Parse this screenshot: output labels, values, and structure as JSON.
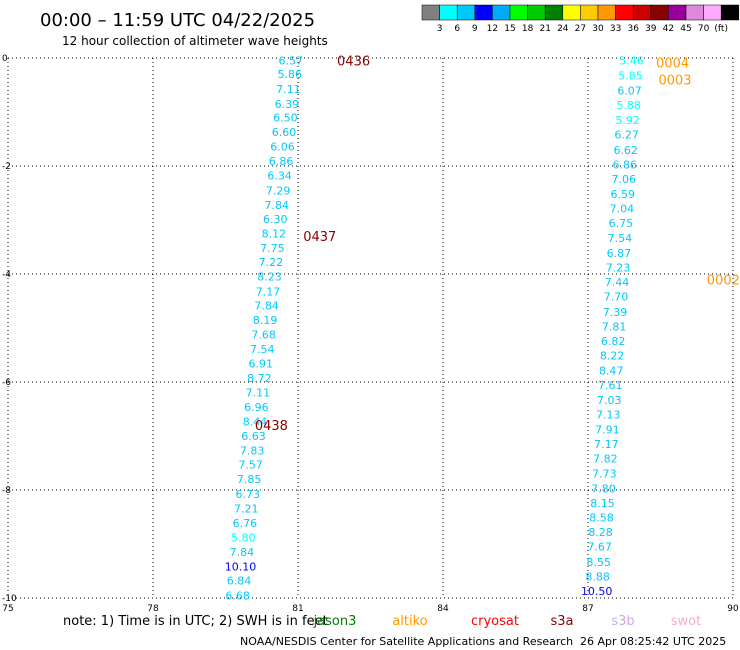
{
  "header": {
    "title": "00:00 – 11:59 UTC 04/22/2025",
    "subtitle": "12 hour collection of altimeter wave heights"
  },
  "colorbar": {
    "colors": [
      "#808080",
      "#00ffff",
      "#00c8ff",
      "#0000ff",
      "#00aaff",
      "#00ff00",
      "#00cc00",
      "#008000",
      "#ffff00",
      "#ffcc00",
      "#ff9900",
      "#ff0000",
      "#cc0000",
      "#8b0000",
      "#990099",
      "#dd88dd",
      "#ffaaff",
      "#000000"
    ],
    "ticks": [
      "3",
      "6",
      "9",
      "12",
      "15",
      "18",
      "21",
      "24",
      "27",
      "30",
      "33",
      "36",
      "39",
      "42",
      "45",
      "70",
      "(ft)"
    ]
  },
  "note": "note:  1) Time is in UTC;  2) SWH is in feet",
  "satellites": [
    {
      "name": "jason3",
      "color": "#008000"
    },
    {
      "name": "altiko",
      "color": "#ff9900"
    },
    {
      "name": "cryosat",
      "color": "#ff0000"
    },
    {
      "name": "s3a",
      "color": "#8b0000"
    },
    {
      "name": "s3b",
      "color": "#ccaaee"
    },
    {
      "name": "swot",
      "color": "#ffaacc"
    }
  ],
  "footer": {
    "credit": "NOAA/NESDIS Center for Satellite Applications and Research",
    "timestamp": "26 Apr 08:25:42 UTC 2025"
  },
  "chart_data": {
    "type": "scatter",
    "xlim": [
      75,
      90
    ],
    "ylim": [
      -10,
      0
    ],
    "xticks": [
      "75",
      "78",
      "81",
      "84",
      "87",
      "90"
    ],
    "yticks": [
      "0",
      "-2",
      "-4",
      "-6",
      "-8",
      "-10"
    ],
    "grid": true,
    "series": [
      {
        "satellite": "s3a",
        "points": [
          {
            "x": 80.85,
            "y": -0.05,
            "label": "6.57",
            "color": "#00c8ff"
          },
          {
            "x": 80.83,
            "y": -0.3,
            "label": "5.86",
            "color": "#00c8ff"
          },
          {
            "x": 80.8,
            "y": -0.57,
            "label": "7.11",
            "color": "#00c8ff"
          },
          {
            "x": 80.77,
            "y": -0.85,
            "label": "6.39",
            "color": "#00c8ff"
          },
          {
            "x": 80.74,
            "y": -1.1,
            "label": "6.50",
            "color": "#00c8ff"
          },
          {
            "x": 80.71,
            "y": -1.37,
            "label": "6.60",
            "color": "#00c8ff"
          },
          {
            "x": 80.68,
            "y": -1.64,
            "label": "6.06",
            "color": "#00c8ff"
          },
          {
            "x": 80.65,
            "y": -1.91,
            "label": "6.86",
            "color": "#00c8ff"
          },
          {
            "x": 80.62,
            "y": -2.18,
            "label": "6.34",
            "color": "#00c8ff"
          },
          {
            "x": 80.59,
            "y": -2.45,
            "label": "7.29",
            "color": "#00c8ff"
          },
          {
            "x": 80.56,
            "y": -2.72,
            "label": "7.84",
            "color": "#00c8ff"
          },
          {
            "x": 80.53,
            "y": -2.98,
            "label": "6.30",
            "color": "#00c8ff"
          },
          {
            "x": 80.5,
            "y": -3.25,
            "label": "8.12",
            "color": "#00c8ff"
          },
          {
            "x": 80.47,
            "y": -3.52,
            "label": "7.75",
            "color": "#00c8ff"
          },
          {
            "x": 80.44,
            "y": -3.78,
            "label": "7.22",
            "color": "#00c8ff"
          },
          {
            "x": 80.41,
            "y": -4.05,
            "label": "8.23",
            "color": "#00c8ff"
          },
          {
            "x": 80.38,
            "y": -4.32,
            "label": "7.17",
            "color": "#00c8ff"
          },
          {
            "x": 80.35,
            "y": -4.58,
            "label": "7.84",
            "color": "#00c8ff"
          },
          {
            "x": 80.32,
            "y": -4.85,
            "label": "8.19",
            "color": "#00c8ff"
          },
          {
            "x": 80.29,
            "y": -5.12,
            "label": "7.68",
            "color": "#00c8ff"
          },
          {
            "x": 80.26,
            "y": -5.39,
            "label": "7.54",
            "color": "#00c8ff"
          },
          {
            "x": 80.23,
            "y": -5.66,
            "label": "6.91",
            "color": "#00c8ff"
          },
          {
            "x": 80.2,
            "y": -5.93,
            "label": "8.72",
            "color": "#00c8ff"
          },
          {
            "x": 80.17,
            "y": -6.19,
            "label": "7.11",
            "color": "#00c8ff"
          },
          {
            "x": 80.14,
            "y": -6.46,
            "label": "6.96",
            "color": "#00c8ff"
          },
          {
            "x": 80.11,
            "y": -6.73,
            "label": "8.44",
            "color": "#00c8ff"
          },
          {
            "x": 80.08,
            "y": -7.0,
            "label": "6.63",
            "color": "#00c8ff"
          },
          {
            "x": 80.05,
            "y": -7.27,
            "label": "7.83",
            "color": "#00c8ff"
          },
          {
            "x": 80.02,
            "y": -7.53,
            "label": "7.57",
            "color": "#00c8ff"
          },
          {
            "x": 79.99,
            "y": -7.8,
            "label": "7.85",
            "color": "#00c8ff"
          },
          {
            "x": 79.96,
            "y": -8.07,
            "label": "6.73",
            "color": "#00c8ff"
          },
          {
            "x": 79.93,
            "y": -8.34,
            "label": "7.21",
            "color": "#00c8ff"
          },
          {
            "x": 79.9,
            "y": -8.61,
            "label": "6.76",
            "color": "#00c8ff"
          },
          {
            "x": 79.87,
            "y": -8.88,
            "label": "5.80",
            "color": "#00ffff"
          },
          {
            "x": 79.84,
            "y": -9.15,
            "label": "7.84",
            "color": "#00c8ff"
          },
          {
            "x": 79.81,
            "y": -9.42,
            "label": "10.10",
            "color": "#0000ff"
          },
          {
            "x": 79.78,
            "y": -9.68,
            "label": "6.84",
            "color": "#00c8ff"
          },
          {
            "x": 79.75,
            "y": -9.95,
            "label": "6.68",
            "color": "#00c8ff"
          }
        ]
      },
      {
        "satellite": "altiko",
        "points": [
          {
            "x": 87.9,
            "y": -0.05,
            "label": "5.46",
            "color": "#00ffff"
          },
          {
            "x": 87.88,
            "y": -0.32,
            "label": "5.85",
            "color": "#00ffff"
          },
          {
            "x": 87.86,
            "y": -0.6,
            "label": "6.07",
            "color": "#00c8ff"
          },
          {
            "x": 87.84,
            "y": -0.87,
            "label": "5.88",
            "color": "#00ffff"
          },
          {
            "x": 87.82,
            "y": -1.15,
            "label": "5.92",
            "color": "#00ffff"
          },
          {
            "x": 87.8,
            "y": -1.42,
            "label": "6.27",
            "color": "#00c8ff"
          },
          {
            "x": 87.78,
            "y": -1.7,
            "label": "6.62",
            "color": "#00c8ff"
          },
          {
            "x": 87.76,
            "y": -1.97,
            "label": "6.86",
            "color": "#00c8ff"
          },
          {
            "x": 87.74,
            "y": -2.24,
            "label": "7.06",
            "color": "#00c8ff"
          },
          {
            "x": 87.72,
            "y": -2.52,
            "label": "6.59",
            "color": "#00c8ff"
          },
          {
            "x": 87.7,
            "y": -2.79,
            "label": "7.04",
            "color": "#00c8ff"
          },
          {
            "x": 87.68,
            "y": -3.06,
            "label": "6.75",
            "color": "#00c8ff"
          },
          {
            "x": 87.66,
            "y": -3.33,
            "label": "7.54",
            "color": "#00c8ff"
          },
          {
            "x": 87.64,
            "y": -3.61,
            "label": "6.87",
            "color": "#00c8ff"
          },
          {
            "x": 87.62,
            "y": -3.88,
            "label": "7.23",
            "color": "#00c8ff"
          },
          {
            "x": 87.6,
            "y": -4.15,
            "label": "7.44",
            "color": "#00c8ff"
          },
          {
            "x": 87.58,
            "y": -4.42,
            "label": "7.70",
            "color": "#00c8ff"
          },
          {
            "x": 87.56,
            "y": -4.7,
            "label": "7.39",
            "color": "#00c8ff"
          },
          {
            "x": 87.54,
            "y": -4.97,
            "label": "7.81",
            "color": "#00c8ff"
          },
          {
            "x": 87.52,
            "y": -5.24,
            "label": "6.82",
            "color": "#00c8ff"
          },
          {
            "x": 87.5,
            "y": -5.51,
            "label": "8.22",
            "color": "#00c8ff"
          },
          {
            "x": 87.48,
            "y": -5.79,
            "label": "8.47",
            "color": "#00c8ff"
          },
          {
            "x": 87.46,
            "y": -6.06,
            "label": "7.61",
            "color": "#00c8ff"
          },
          {
            "x": 87.44,
            "y": -6.33,
            "label": "7.03",
            "color": "#00c8ff"
          },
          {
            "x": 87.42,
            "y": -6.6,
            "label": "7.13",
            "color": "#00c8ff"
          },
          {
            "x": 87.4,
            "y": -6.88,
            "label": "7.91",
            "color": "#00c8ff"
          },
          {
            "x": 87.38,
            "y": -7.15,
            "label": "7.17",
            "color": "#00c8ff"
          },
          {
            "x": 87.36,
            "y": -7.42,
            "label": "7.82",
            "color": "#00c8ff"
          },
          {
            "x": 87.34,
            "y": -7.69,
            "label": "7.73",
            "color": "#00c8ff"
          },
          {
            "x": 87.32,
            "y": -7.97,
            "label": "7.80",
            "color": "#00c8ff"
          },
          {
            "x": 87.3,
            "y": -8.24,
            "label": "8.15",
            "color": "#00c8ff"
          },
          {
            "x": 87.28,
            "y": -8.51,
            "label": "8.58",
            "color": "#00c8ff"
          },
          {
            "x": 87.26,
            "y": -8.78,
            "label": "8.28",
            "color": "#00c8ff"
          },
          {
            "x": 87.24,
            "y": -9.05,
            "label": "7.67",
            "color": "#00c8ff"
          },
          {
            "x": 87.22,
            "y": -9.33,
            "label": "8.55",
            "color": "#00c8ff"
          },
          {
            "x": 87.2,
            "y": -9.6,
            "label": "8.88",
            "color": "#00c8ff"
          },
          {
            "x": 87.18,
            "y": -9.87,
            "label": "10.50",
            "color": "#0000ff"
          }
        ]
      }
    ],
    "pass_labels": [
      {
        "text": "0436",
        "x": 82.15,
        "y": -0.05,
        "color": "#8b0000"
      },
      {
        "text": "0437",
        "x": 81.45,
        "y": -3.3,
        "color": "#8b0000"
      },
      {
        "text": "0438",
        "x": 80.45,
        "y": -6.8,
        "color": "#8b0000"
      },
      {
        "text": "0004",
        "x": 88.75,
        "y": -0.08,
        "color": "#ff9900"
      },
      {
        "text": "0003",
        "x": 88.8,
        "y": -0.4,
        "color": "#ff9900"
      },
      {
        "text": "0002",
        "x": 89.8,
        "y": -4.1,
        "color": "#ff9900"
      }
    ]
  }
}
